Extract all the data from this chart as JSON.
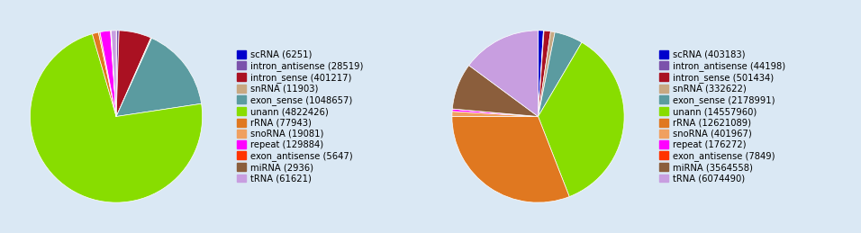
{
  "left": {
    "counts": [
      6251,
      28519,
      401217,
      11903,
      1048657,
      4822426,
      77943,
      19081,
      129884,
      5647,
      2936,
      61621
    ],
    "colors": [
      "#0000cc",
      "#7b52ab",
      "#aa1122",
      "#c8a882",
      "#5b9ba0",
      "#88dd00",
      "#e07820",
      "#f0a060",
      "#ff00ff",
      "#ff3300",
      "#8b5e3c",
      "#c89ee0"
    ]
  },
  "right": {
    "counts": [
      403183,
      44198,
      501434,
      332622,
      2178991,
      14557960,
      12621089,
      401967,
      176272,
      7849,
      3564558,
      6074490
    ],
    "colors": [
      "#0000cc",
      "#7b52ab",
      "#aa1122",
      "#c8a882",
      "#5b9ba0",
      "#88dd00",
      "#e07820",
      "#f0a060",
      "#ff00ff",
      "#ff3300",
      "#8b5e3c",
      "#c89ee0"
    ]
  },
  "legend_labels_left": [
    "scRNA (6251)",
    "intron_antisense (28519)",
    "intron_sense (401217)",
    "snRNA (11903)",
    "exon_sense (1048657)",
    "unann (4822426)",
    "rRNA (77943)",
    "snoRNA (19081)",
    "repeat (129884)",
    "exon_antisense (5647)",
    "miRNA (2936)",
    "tRNA (61621)"
  ],
  "legend_labels_right": [
    "scRNA (403183)",
    "intron_antisense (44198)",
    "intron_sense (501434)",
    "snRNA (332622)",
    "exon_sense (2178991)",
    "unann (14557960)",
    "rRNA (12621089)",
    "snoRNA (401967)",
    "repeat (176272)",
    "exon_antisense (7849)",
    "miRNA (3564558)",
    "tRNA (6074490)"
  ],
  "background_color": "#dae8f4",
  "legend_fontsize": 7.2,
  "startangle": 90
}
